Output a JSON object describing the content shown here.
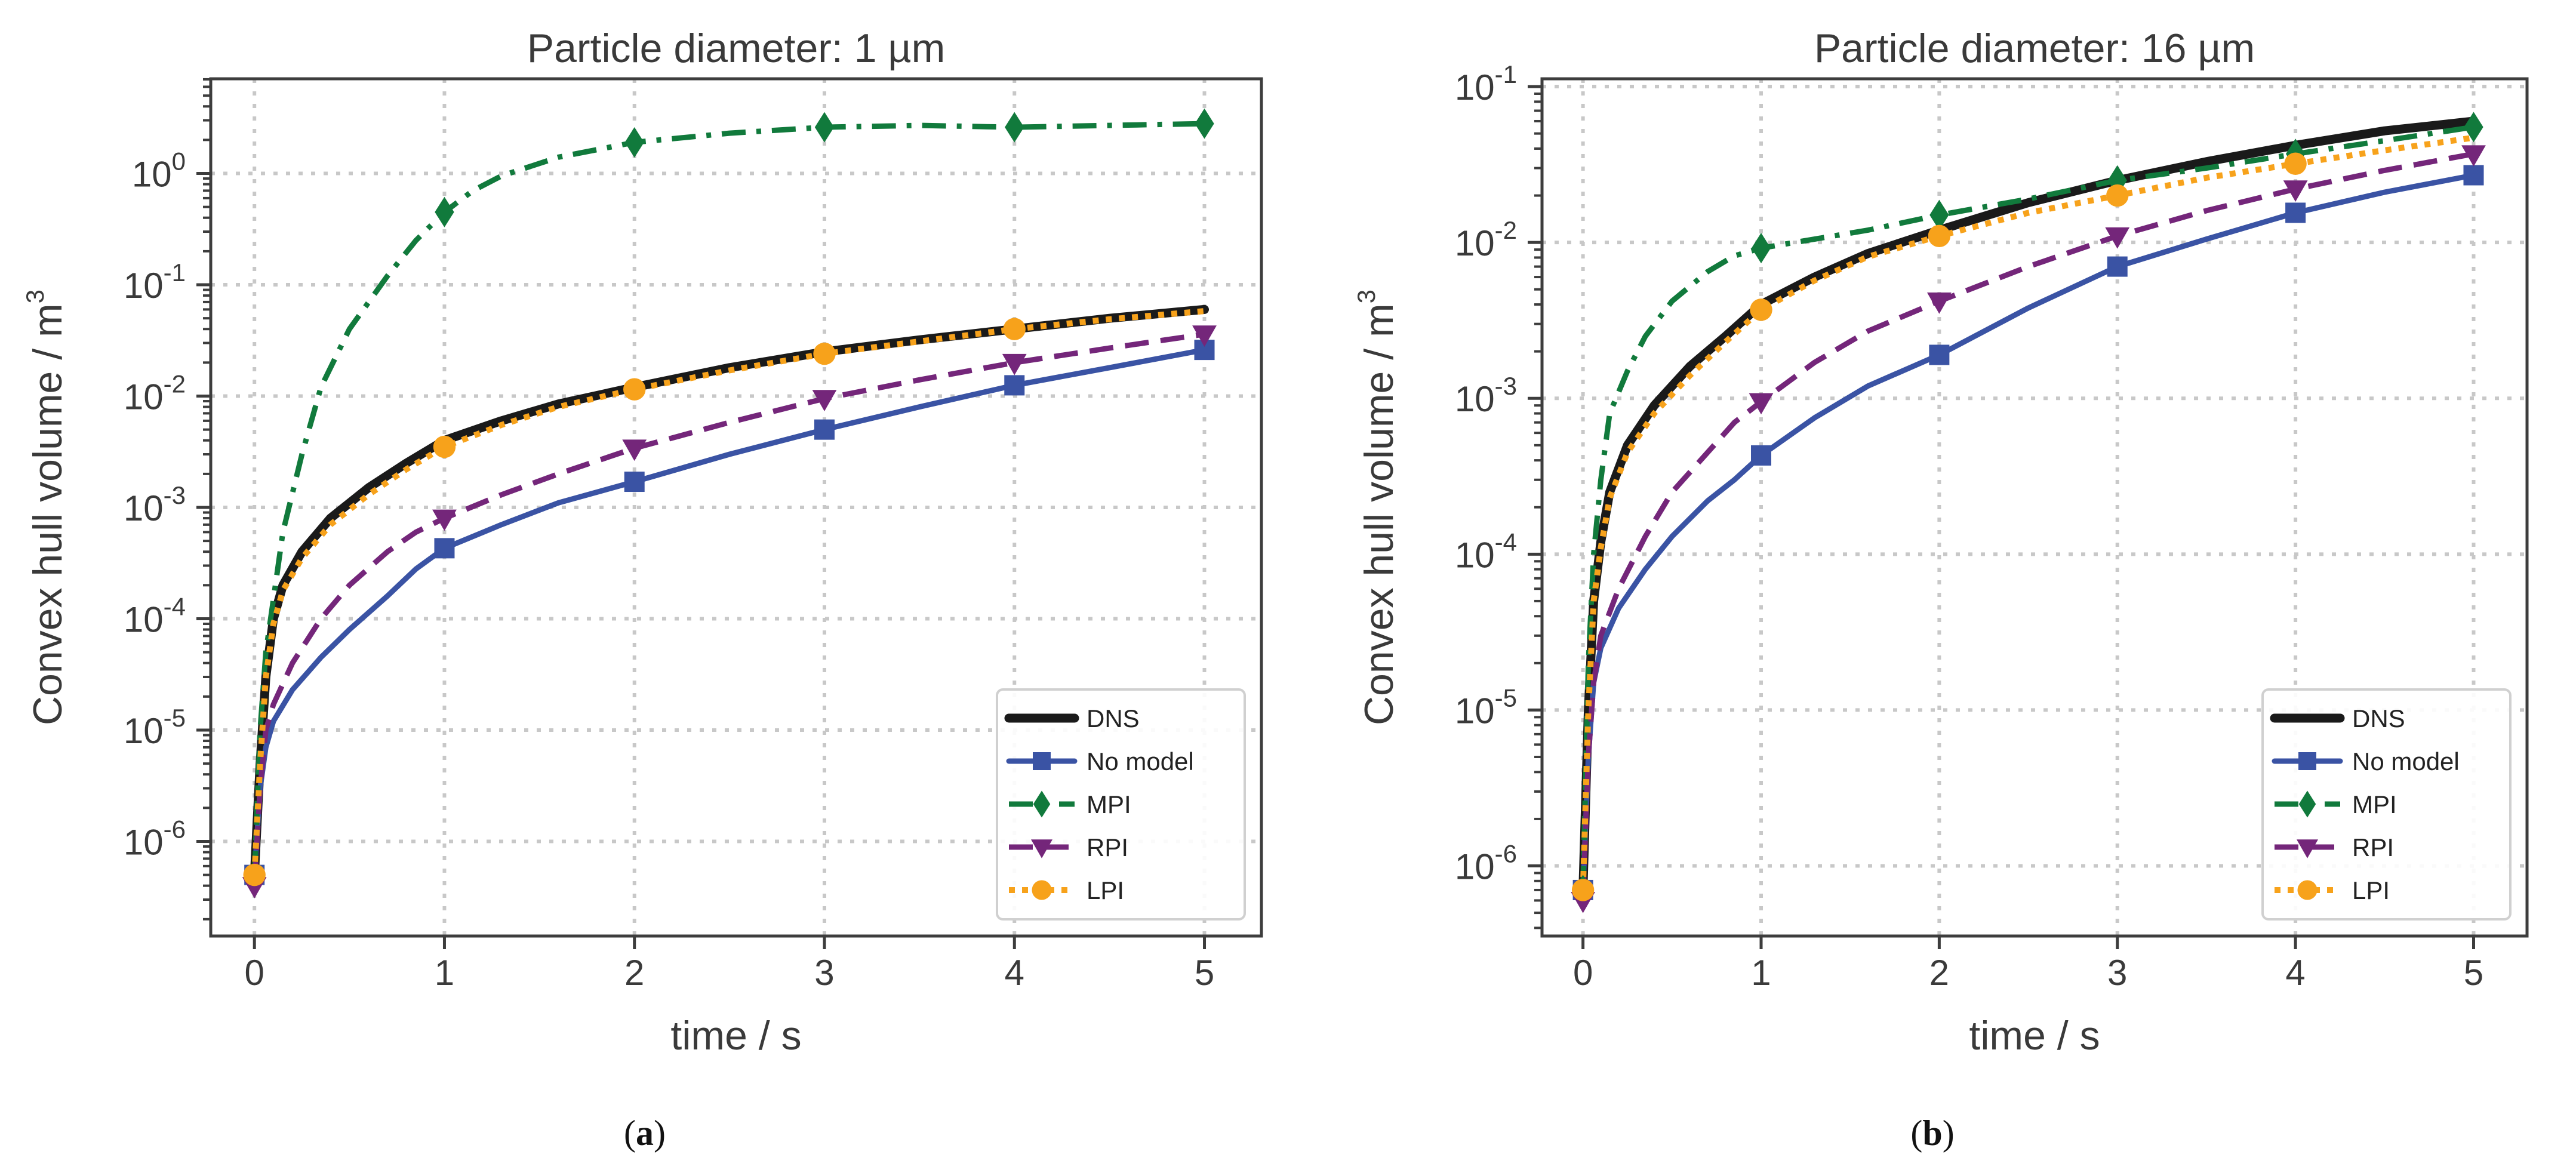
{
  "panels": [
    {
      "caption": {
        "open": "(",
        "letter": "a",
        "close": ")"
      },
      "chart_data": {
        "type": "line",
        "title": "Particle diameter: 1 µm",
        "xlabel": "time / s",
        "ylabel": "Convex hull volume / m",
        "ylabel_sup": "3",
        "yscale": "log",
        "xlim": [
          -0.23,
          5.3
        ],
        "ylim_log10": [
          -6.85,
          0.85
        ],
        "xticks": [
          "0",
          "1",
          "2",
          "3",
          "4",
          "5"
        ],
        "yticks": [
          {
            "base": "10",
            "exp": "-6",
            "log": -6
          },
          {
            "base": "10",
            "exp": "-5",
            "log": -5
          },
          {
            "base": "10",
            "exp": "-4",
            "log": -4
          },
          {
            "base": "10",
            "exp": "-3",
            "log": -3
          },
          {
            "base": "10",
            "exp": "-2",
            "log": -2
          },
          {
            "base": "10",
            "exp": "-1",
            "log": -1
          },
          {
            "base": "10",
            "exp": "0",
            "log": 0
          }
        ],
        "grid": true,
        "legend_position": "lower-right",
        "series": [
          {
            "name": "DNS",
            "color": "#1a1a1a",
            "style": "solid-thick",
            "marker": "none",
            "x": [
              0,
              0.03,
              0.06,
              0.1,
              0.15,
              0.25,
              0.4,
              0.6,
              0.8,
              1.0,
              1.3,
              1.6,
              2.0,
              2.5,
              3.0,
              3.5,
              4.0,
              4.5,
              5.0
            ],
            "y": [
              5e-07,
              5e-06,
              3e-05,
              0.0001,
              0.0002,
              0.0004,
              0.0008,
              0.0015,
              0.0025,
              0.004,
              0.006,
              0.0085,
              0.012,
              0.018,
              0.025,
              0.032,
              0.04,
              0.05,
              0.06
            ],
            "mx": [],
            "my": []
          },
          {
            "name": "No model",
            "color": "#3a53a4",
            "style": "solid",
            "marker": "square",
            "x": [
              0,
              0.03,
              0.06,
              0.1,
              0.2,
              0.35,
              0.5,
              0.7,
              0.85,
              1.0,
              1.3,
              1.6,
              2.0,
              2.5,
              3.0,
              3.5,
              4.0,
              4.5,
              5.0
            ],
            "y": [
              5e-07,
              3e-06,
              7e-06,
              1.2e-05,
              2.3e-05,
              4.5e-05,
              8e-05,
              0.00016,
              0.00028,
              0.00043,
              0.0007,
              0.0011,
              0.0017,
              0.003,
              0.005,
              0.008,
              0.0125,
              0.018,
              0.026
            ],
            "mx": [
              0,
              1,
              2,
              3,
              4,
              5
            ],
            "my": [
              5e-07,
              0.00043,
              0.0017,
              0.005,
              0.0125,
              0.026
            ]
          },
          {
            "name": "MPI",
            "color": "#117a3c",
            "style": "dashdot",
            "marker": "diamond",
            "x": [
              0,
              0.03,
              0.06,
              0.1,
              0.15,
              0.25,
              0.35,
              0.5,
              0.7,
              0.85,
              1.0,
              1.15,
              1.3,
              1.6,
              2.0,
              2.5,
              3.0,
              3.5,
              4.0,
              4.5,
              5.0
            ],
            "y": [
              5e-07,
              1e-05,
              5e-05,
              0.00015,
              0.0006,
              0.003,
              0.012,
              0.04,
              0.12,
              0.25,
              0.45,
              0.7,
              0.95,
              1.4,
              1.9,
              2.3,
              2.6,
              2.7,
              2.6,
              2.7,
              2.8
            ],
            "mx": [
              1,
              2,
              3,
              4,
              5
            ],
            "my": [
              0.45,
              1.9,
              2.6,
              2.6,
              2.8
            ]
          },
          {
            "name": "RPI",
            "color": "#74267a",
            "style": "dashed",
            "marker": "triangle-down",
            "x": [
              0,
              0.03,
              0.06,
              0.1,
              0.2,
              0.35,
              0.5,
              0.7,
              0.85,
              1.0,
              1.3,
              1.6,
              2.0,
              2.5,
              3.0,
              3.5,
              4.0,
              4.5,
              5.0
            ],
            "y": [
              4e-07,
              3e-06,
              1e-05,
              1.7e-05,
              4e-05,
              0.0001,
              0.0002,
              0.0004,
              0.0006,
              0.0008,
              0.0013,
              0.002,
              0.0034,
              0.0058,
              0.0095,
              0.014,
              0.02,
              0.027,
              0.036
            ],
            "mx": [
              0,
              1,
              2,
              3,
              4,
              5
            ],
            "my": [
              4e-07,
              0.0008,
              0.0034,
              0.0095,
              0.02,
              0.036
            ]
          },
          {
            "name": "LPI",
            "color": "#f7a21b",
            "style": "dotted",
            "marker": "circle",
            "x": [
              0,
              0.03,
              0.06,
              0.1,
              0.15,
              0.25,
              0.4,
              0.6,
              0.8,
              1.0,
              1.3,
              1.6,
              2.0,
              2.5,
              3.0,
              3.5,
              4.0,
              4.5,
              5.0
            ],
            "y": [
              5e-07,
              5e-06,
              3e-05,
              9e-05,
              0.00018,
              0.00035,
              0.0007,
              0.0013,
              0.0022,
              0.0035,
              0.0055,
              0.008,
              0.0115,
              0.017,
              0.024,
              0.031,
              0.04,
              0.049,
              0.058
            ],
            "mx": [
              0,
              1,
              2,
              3,
              4
            ],
            "my": [
              5e-07,
              0.0035,
              0.0115,
              0.024,
              0.04
            ]
          }
        ]
      }
    },
    {
      "caption": {
        "open": "(",
        "letter": "b",
        "close": ")"
      },
      "chart_data": {
        "type": "line",
        "title": "Particle diameter: 16 µm",
        "xlabel": "time / s",
        "ylabel": "Convex hull volume / m",
        "ylabel_sup": "3",
        "yscale": "log",
        "xlim": [
          -0.23,
          5.3
        ],
        "ylim_log10": [
          -6.45,
          -0.95
        ],
        "xticks": [
          "0",
          "1",
          "2",
          "3",
          "4",
          "5"
        ],
        "yticks": [
          {
            "base": "10",
            "exp": "-6",
            "log": -6
          },
          {
            "base": "10",
            "exp": "-5",
            "log": -5
          },
          {
            "base": "10",
            "exp": "-4",
            "log": -4
          },
          {
            "base": "10",
            "exp": "-3",
            "log": -3
          },
          {
            "base": "10",
            "exp": "-2",
            "log": -2
          },
          {
            "base": "10",
            "exp": "-1",
            "log": -1
          }
        ],
        "grid": true,
        "legend_position": "lower-right",
        "series": [
          {
            "name": "DNS",
            "color": "#1a1a1a",
            "style": "solid-thick",
            "marker": "none",
            "x": [
              0,
              0.03,
              0.06,
              0.1,
              0.15,
              0.25,
              0.4,
              0.6,
              0.8,
              1.0,
              1.3,
              1.6,
              2.0,
              2.5,
              3.0,
              3.5,
              4.0,
              4.5,
              5.0
            ],
            "y": [
              7e-07,
              1e-05,
              5e-05,
              0.00012,
              0.00025,
              0.0005,
              0.0009,
              0.0016,
              0.0025,
              0.004,
              0.006,
              0.0085,
              0.012,
              0.018,
              0.025,
              0.033,
              0.042,
              0.052,
              0.06
            ],
            "mx": [],
            "my": []
          },
          {
            "name": "No model",
            "color": "#3a53a4",
            "style": "solid",
            "marker": "square",
            "x": [
              0,
              0.03,
              0.06,
              0.1,
              0.2,
              0.35,
              0.5,
              0.7,
              0.85,
              1.0,
              1.3,
              1.6,
              2.0,
              2.5,
              3.0,
              3.5,
              4.0,
              4.5,
              5.0
            ],
            "y": [
              7e-07,
              5e-06,
              1.5e-05,
              2.5e-05,
              4.5e-05,
              8e-05,
              0.00013,
              0.00022,
              0.0003,
              0.00043,
              0.00075,
              0.0012,
              0.0019,
              0.0038,
              0.007,
              0.0105,
              0.0155,
              0.021,
              0.027
            ],
            "mx": [
              0,
              1,
              2,
              3,
              4,
              5
            ],
            "my": [
              7e-07,
              0.00043,
              0.0019,
              0.007,
              0.0155,
              0.027
            ]
          },
          {
            "name": "MPI",
            "color": "#117a3c",
            "style": "dashdot",
            "marker": "diamond",
            "x": [
              0,
              0.03,
              0.06,
              0.1,
              0.15,
              0.25,
              0.35,
              0.5,
              0.7,
              0.85,
              1.0,
              1.3,
              1.6,
              2.0,
              2.5,
              3.0,
              3.5,
              4.0,
              4.5,
              5.0
            ],
            "y": [
              7e-07,
              2e-05,
              0.0001,
              0.0003,
              0.0008,
              0.0015,
              0.0025,
              0.0042,
              0.0065,
              0.0082,
              0.0092,
              0.0105,
              0.012,
              0.015,
              0.019,
              0.025,
              0.03,
              0.037,
              0.045,
              0.055
            ],
            "mx": [
              0,
              1,
              2,
              3,
              4,
              5
            ],
            "my": [
              7e-07,
              0.0092,
              0.015,
              0.025,
              0.037,
              0.055
            ]
          },
          {
            "name": "RPI",
            "color": "#74267a",
            "style": "dashed",
            "marker": "triangle-down",
            "x": [
              0,
              0.03,
              0.06,
              0.1,
              0.2,
              0.35,
              0.5,
              0.7,
              0.85,
              1.0,
              1.3,
              1.6,
              2.0,
              2.5,
              3.0,
              3.5,
              4.0,
              4.5,
              5.0
            ],
            "y": [
              6e-07,
              5e-06,
              1.5e-05,
              3e-05,
              6e-05,
              0.00013,
              0.00025,
              0.00045,
              0.0007,
              0.00095,
              0.0017,
              0.0027,
              0.0042,
              0.007,
              0.011,
              0.016,
              0.022,
              0.029,
              0.037
            ],
            "mx": [
              0,
              1,
              2,
              3,
              4,
              5
            ],
            "my": [
              6e-07,
              0.00095,
              0.0042,
              0.011,
              0.022,
              0.037
            ]
          },
          {
            "name": "LPI",
            "color": "#f7a21b",
            "style": "dotted",
            "marker": "circle",
            "x": [
              0,
              0.03,
              0.06,
              0.1,
              0.15,
              0.25,
              0.4,
              0.6,
              0.8,
              1.0,
              1.3,
              1.6,
              2.0,
              2.5,
              3.0,
              3.5,
              4.0,
              4.5,
              5.0
            ],
            "y": [
              7e-07,
              1e-05,
              5e-05,
              0.00011,
              0.00023,
              0.00045,
              0.0008,
              0.0014,
              0.0023,
              0.0037,
              0.0057,
              0.0081,
              0.011,
              0.0155,
              0.02,
              0.026,
              0.032,
              0.039,
              0.047
            ],
            "mx": [
              0,
              1,
              2,
              3,
              4
            ],
            "my": [
              7e-07,
              0.0037,
              0.011,
              0.02,
              0.032
            ]
          }
        ]
      }
    }
  ]
}
